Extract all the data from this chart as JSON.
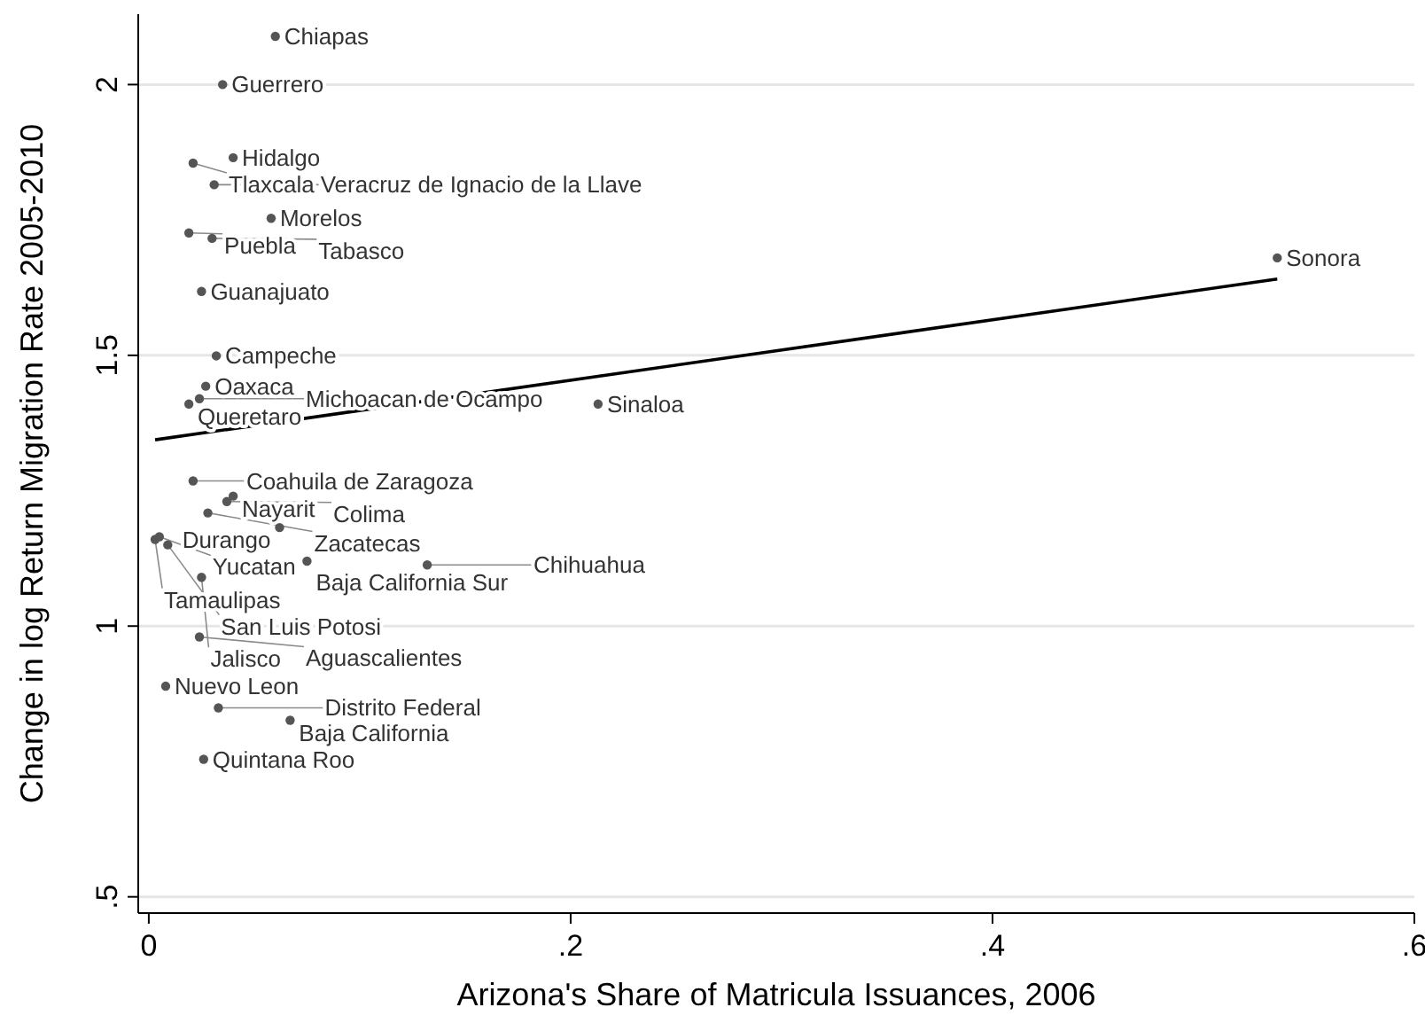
{
  "chart_data": {
    "type": "scatter",
    "xlabel": "Arizona's Share of Matricula Issuances, 2006",
    "ylabel": "Change in log Return Migration Rate 2005-2010",
    "xlim": [
      -0.005,
      0.6
    ],
    "ylim": [
      0.47,
      2.13
    ],
    "xticks": [
      0,
      {
        "value": 0.2,
        "label": ".2"
      },
      {
        "value": 0.4,
        "label": ".4"
      },
      {
        "value": 0.6,
        "label": ".6"
      }
    ],
    "yticks": [
      {
        "value": 0.5,
        "label": ".5"
      },
      1,
      1.5,
      2
    ],
    "grid": "y",
    "marker": "circle",
    "series": [
      {
        "color": "#555555",
        "x": [
          0.06,
          0.035,
          0.04,
          0.021,
          0.031,
          0.058,
          0.019,
          0.03,
          0.025,
          0.032,
          0.027,
          0.024,
          0.019,
          0.213,
          0.535,
          0.021,
          0.04,
          0.037,
          0.028,
          0.062,
          0.005,
          0.003,
          0.009,
          0.075,
          0.132,
          0.025,
          0.024,
          0.008,
          0.033,
          0.067,
          0.026
        ],
        "values": [
          2.089,
          2.0,
          1.865,
          1.855,
          1.815,
          1.753,
          1.726,
          1.716,
          1.618,
          1.499,
          1.443,
          1.42,
          1.41,
          1.41,
          1.68,
          1.268,
          1.24,
          1.23,
          1.209,
          1.182,
          1.165,
          1.16,
          1.15,
          1.12,
          1.113,
          1.09,
          0.98,
          0.889,
          0.849,
          0.826,
          0.754
        ]
      },
      {
        "type": "line",
        "color": "#000000",
        "x": [
          0.003,
          0.535
        ],
        "values": [
          1.344,
          1.641
        ],
        "marker": "none"
      }
    ],
    "annotations": [
      {
        "text": "Chiapas",
        "x": 0.06,
        "y": 2.089
      },
      {
        "text": "Guerrero",
        "x": 0.035,
        "y": 2.0
      },
      {
        "text": "Hidalgo",
        "x": 0.04,
        "y": 1.865
      },
      {
        "text": "Tlaxcala",
        "x": 0.021,
        "y": 1.855
      },
      {
        "text": "Veracruz de Ignacio de la Llave",
        "x": 0.031,
        "y": 1.815
      },
      {
        "text": "Morelos",
        "x": 0.058,
        "y": 1.753
      },
      {
        "text": "Puebla",
        "x": 0.019,
        "y": 1.726
      },
      {
        "text": "Tabasco",
        "x": 0.03,
        "y": 1.716
      },
      {
        "text": "Guanajuato",
        "x": 0.025,
        "y": 1.618
      },
      {
        "text": "Campeche",
        "x": 0.032,
        "y": 1.499
      },
      {
        "text": "Oaxaca",
        "x": 0.027,
        "y": 1.443
      },
      {
        "text": "Michoacan de Ocampo",
        "x": 0.024,
        "y": 1.42
      },
      {
        "text": "Queretaro",
        "x": 0.019,
        "y": 1.41
      },
      {
        "text": "Sinaloa",
        "x": 0.213,
        "y": 1.41
      },
      {
        "text": "Sonora",
        "x": 0.535,
        "y": 1.68
      },
      {
        "text": "Coahuila de Zaragoza",
        "x": 0.021,
        "y": 1.268
      },
      {
        "text": "Nayarit",
        "x": 0.04,
        "y": 1.24
      },
      {
        "text": "Colima",
        "x": 0.037,
        "y": 1.23
      },
      {
        "text": "Zacatecas",
        "x": 0.028,
        "y": 1.209
      },
      {
        "text": "Durango",
        "x": 0.062,
        "y": 1.182
      },
      {
        "text": "Yucatan",
        "x": 0.005,
        "y": 1.165
      },
      {
        "text": "Tamaulipas",
        "x": 0.003,
        "y": 1.16
      },
      {
        "text": "San Luis Potosi",
        "x": 0.009,
        "y": 1.15
      },
      {
        "text": "Baja California Sur",
        "x": 0.075,
        "y": 1.12
      },
      {
        "text": "Chihuahua",
        "x": 0.132,
        "y": 1.113
      },
      {
        "text": "Jalisco",
        "x": 0.025,
        "y": 1.09
      },
      {
        "text": "Aguascalientes",
        "x": 0.024,
        "y": 0.98
      },
      {
        "text": "Nuevo Leon",
        "x": 0.008,
        "y": 0.889
      },
      {
        "text": "Distrito Federal",
        "x": 0.033,
        "y": 0.849
      },
      {
        "text": "Baja California",
        "x": 0.067,
        "y": 0.826
      },
      {
        "text": "Quintana Roo",
        "x": 0.026,
        "y": 0.754
      }
    ]
  }
}
